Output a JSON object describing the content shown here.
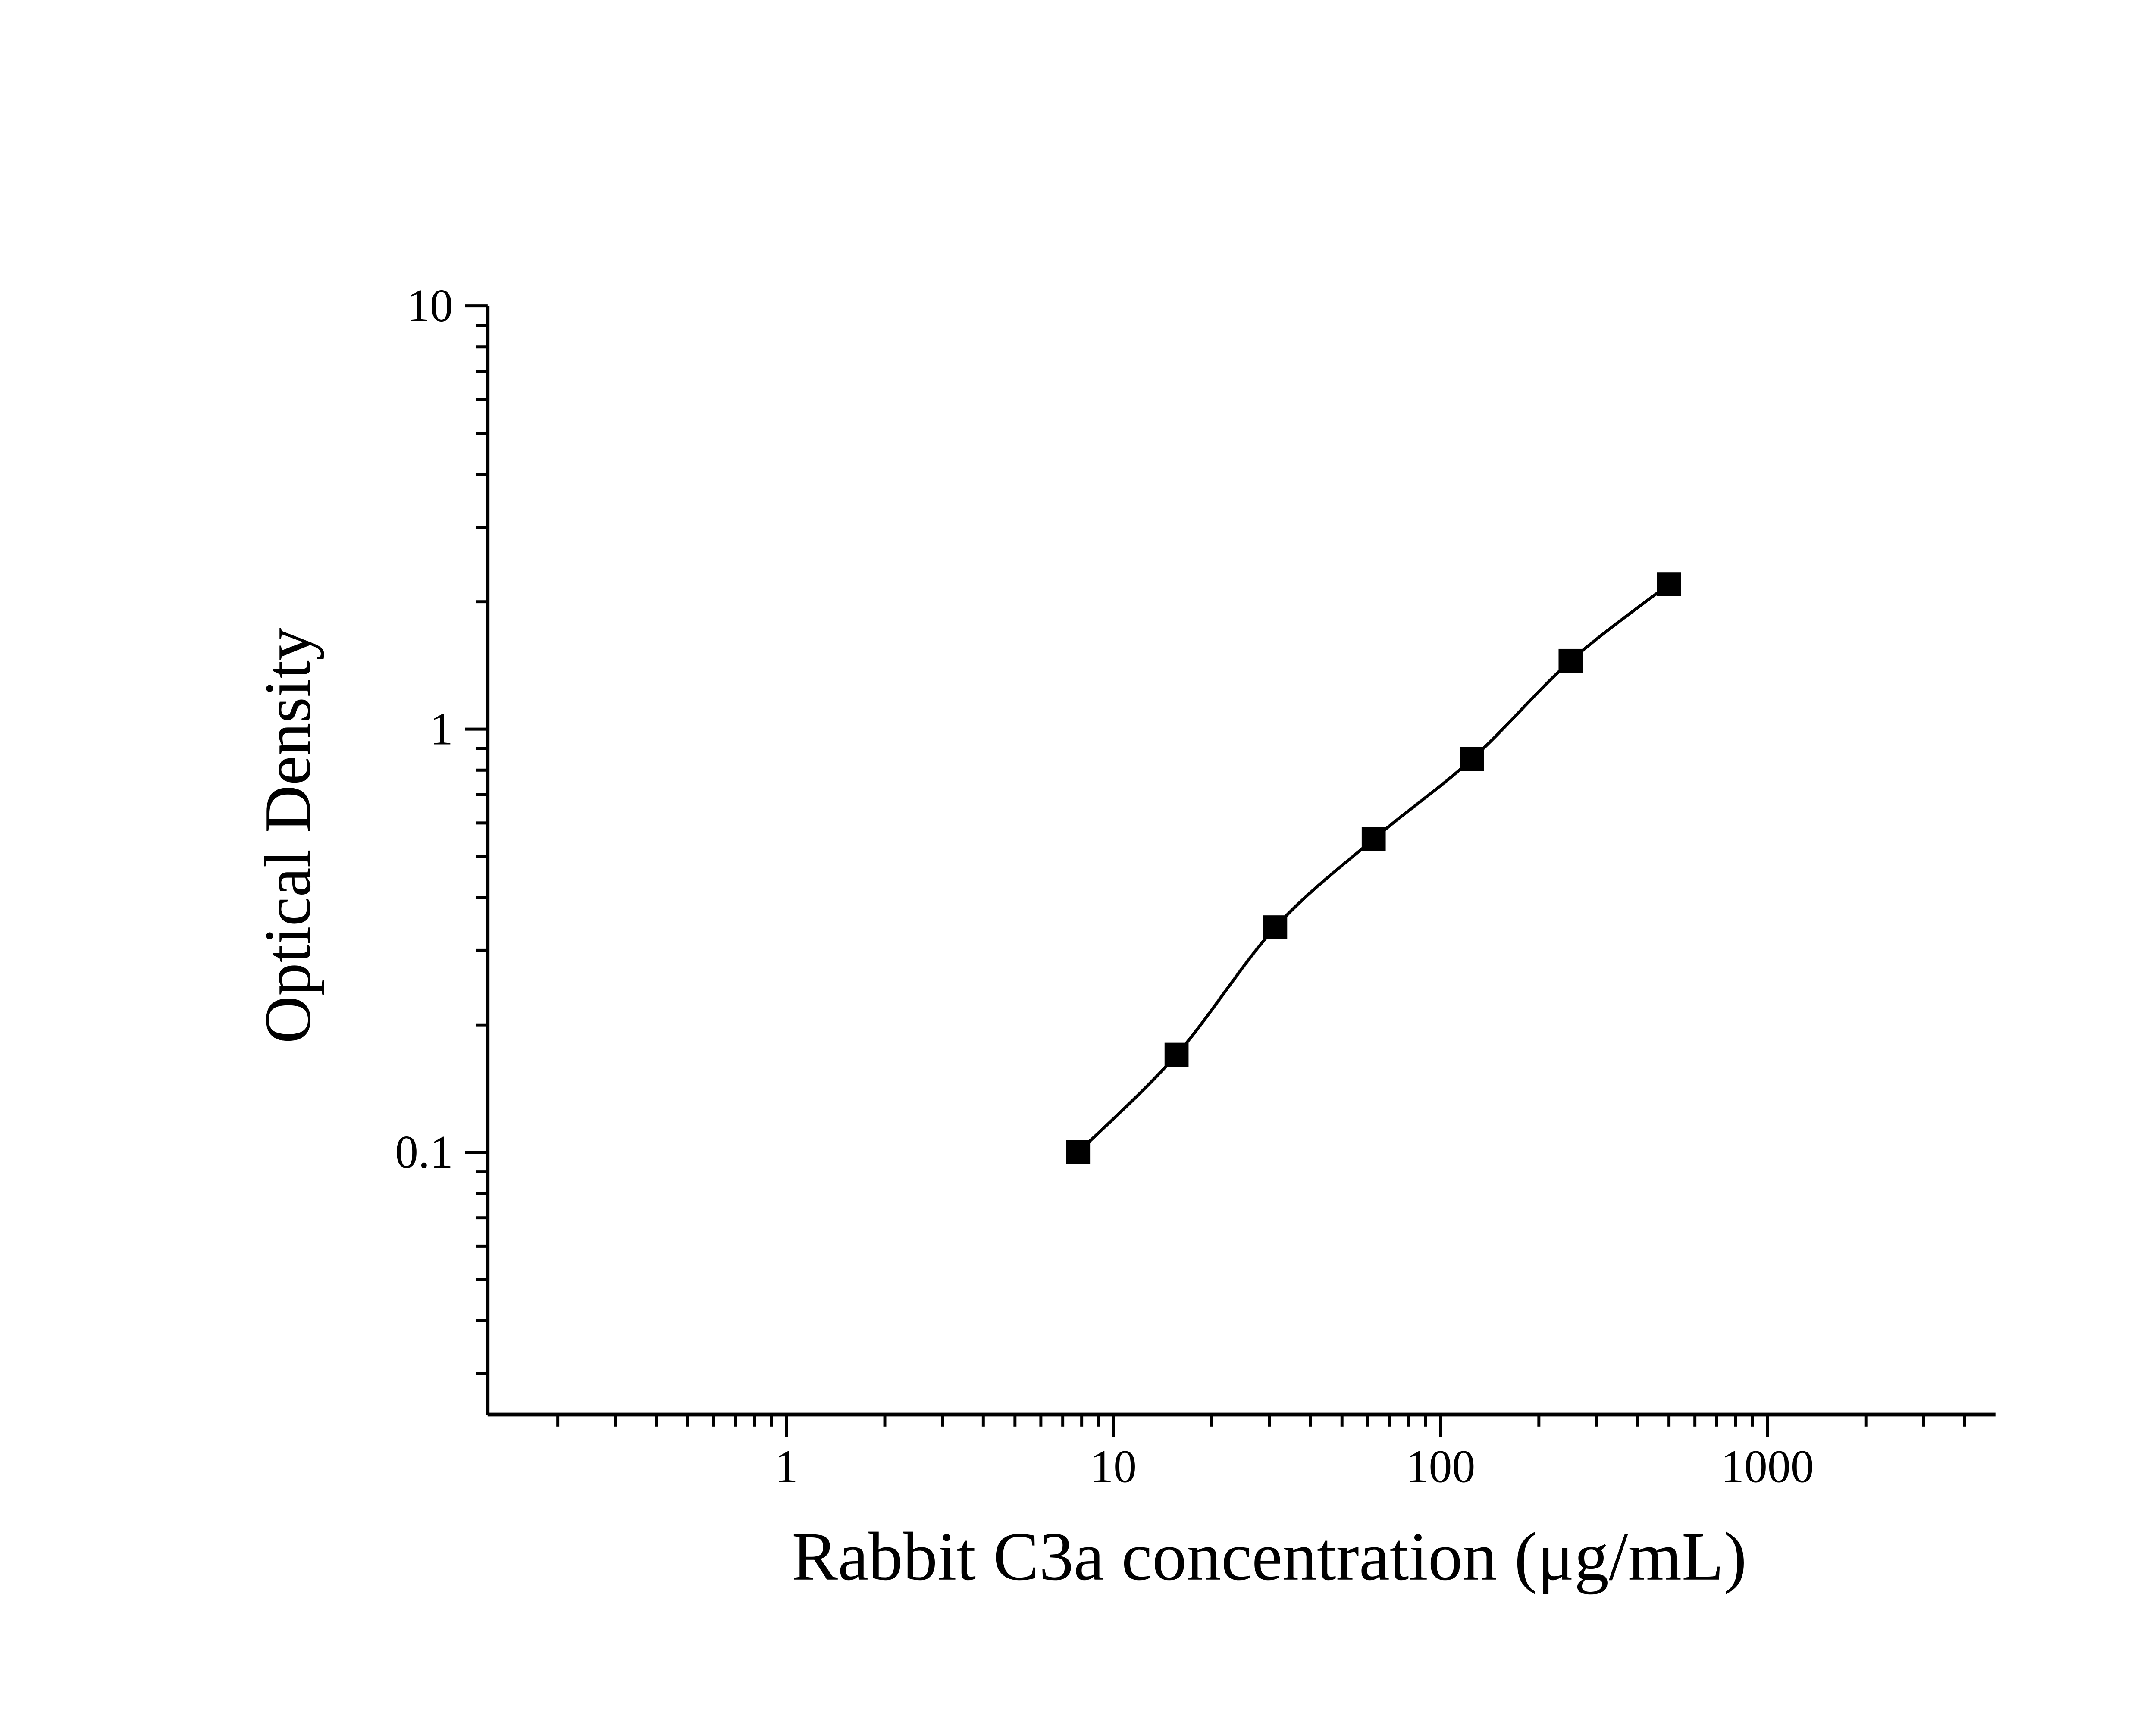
{
  "chart_data": {
    "type": "scatter",
    "title": "",
    "xlabel": "Rabbit C3a concentration (μg/mL)",
    "ylabel": "Optical Density",
    "x_scale": "log",
    "y_scale": "log",
    "xlim": [
      0.122,
      4980
    ],
    "ylim": [
      0.024,
      10
    ],
    "x_major_ticks": [
      1,
      10,
      100,
      1000
    ],
    "x_tick_labels": [
      "1",
      "10",
      "100",
      "1000"
    ],
    "y_major_ticks": [
      0.1,
      1,
      10
    ],
    "y_tick_labels": [
      "0.1",
      "1",
      "10"
    ],
    "grid": false,
    "legend": "none",
    "background": "#ffffff",
    "axis_color": "#000000",
    "series": [
      {
        "name": "standard-curve",
        "marker": "square",
        "color": "#000000",
        "line": "smooth",
        "points": [
          {
            "x": 7.8,
            "y": 0.1
          },
          {
            "x": 15.6,
            "y": 0.17
          },
          {
            "x": 31.25,
            "y": 0.34
          },
          {
            "x": 62.5,
            "y": 0.55
          },
          {
            "x": 125,
            "y": 0.85
          },
          {
            "x": 250,
            "y": 1.45
          },
          {
            "x": 500,
            "y": 2.2
          }
        ]
      }
    ]
  }
}
